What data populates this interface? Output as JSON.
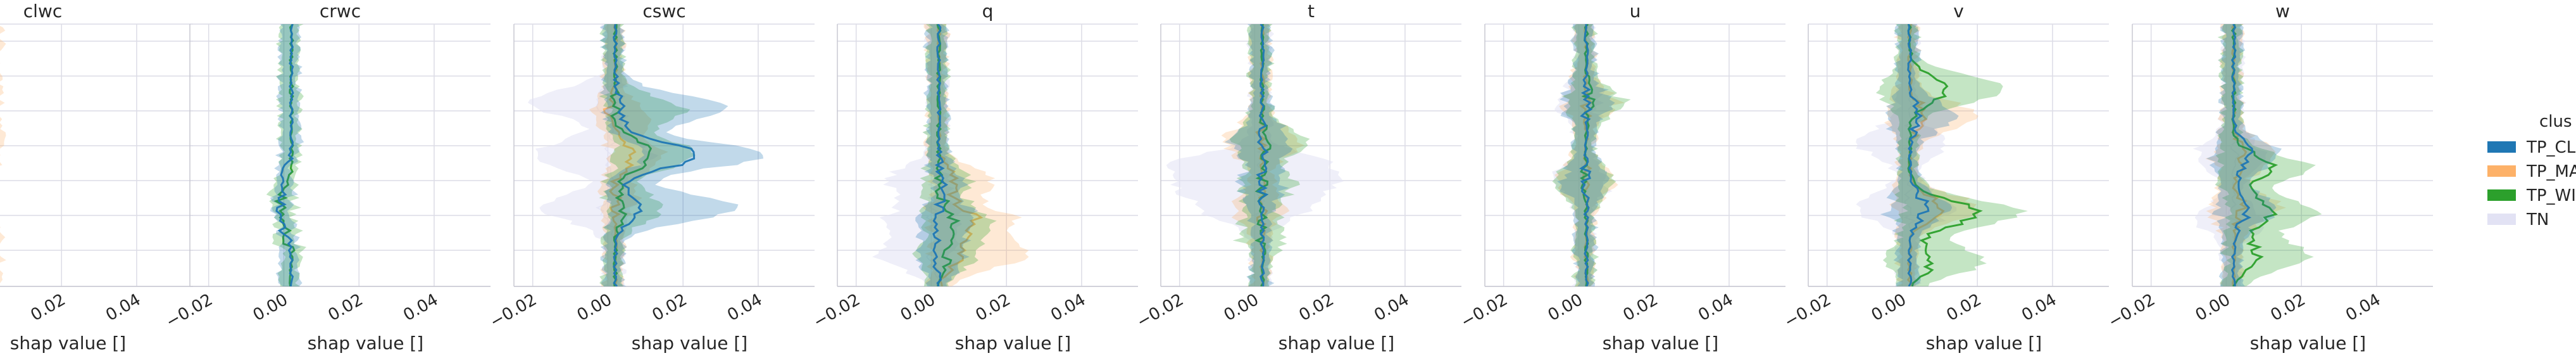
{
  "chart_data": {
    "type": "area",
    "description_free": true,
    "panels": [
      {
        "title": "clwc",
        "xlabel": "shap value []",
        "xlim": [
          -0.025,
          0.055
        ]
      },
      {
        "title": "crwc",
        "xlabel": "shap value []",
        "xlim": [
          -0.025,
          0.055
        ]
      },
      {
        "title": "cswc",
        "xlabel": "shap value []",
        "xlim": [
          -0.025,
          0.055
        ]
      },
      {
        "title": "q",
        "xlabel": "shap value []",
        "xlim": [
          -0.025,
          0.055
        ]
      },
      {
        "title": "t",
        "xlabel": "shap value []",
        "xlim": [
          -0.025,
          0.055
        ]
      },
      {
        "title": "u",
        "xlabel": "shap value []",
        "xlim": [
          -0.025,
          0.055
        ]
      },
      {
        "title": "v",
        "xlabel": "shap value []",
        "xlim": [
          -0.025,
          0.055
        ]
      },
      {
        "title": "w",
        "xlabel": "shap value []",
        "xlim": [
          -0.025,
          0.055
        ]
      }
    ],
    "xticks": [
      -0.02,
      0.0,
      0.02,
      0.04
    ],
    "xtick_labels": [
      "−0.02",
      "0.00",
      "0.02",
      "0.04"
    ],
    "grid": true,
    "legend": {
      "placement": "right",
      "title": "clus",
      "entries": [
        {
          "label": "TP_CL",
          "color": "#1f77b4"
        },
        {
          "label": "TP_MA",
          "color": "#fdb168"
        },
        {
          "label": "TP_WI",
          "color": "#2ca02c"
        },
        {
          "label": "TN",
          "color": "#e2e2f4"
        }
      ]
    },
    "series_profiles": {
      "clwc": {
        "TP_MA": [
          [
            0.62,
            -0.02,
            0.001,
            -0.03
          ],
          [
            0.66,
            -0.022,
            0.0,
            -0.03
          ]
        ]
      },
      "crwc": {
        "TP_CL": [
          [
            0.6,
            0.0,
            0.002,
            -0.001
          ],
          [
            0.7,
            -0.002,
            0.001,
            -0.004
          ],
          [
            0.75,
            0.0,
            0.003,
            0.0
          ]
        ],
        "TP_WI": [
          [
            0.7,
            -0.002,
            0.002,
            -0.005
          ],
          [
            0.76,
            0.002,
            0.004,
            0.0
          ],
          [
            0.8,
            0.001,
            0.005,
            -0.001
          ]
        ]
      },
      "cswc": {
        "TN": [
          [
            0.3,
            -0.002,
            0.004,
            -0.02
          ],
          [
            0.5,
            0.0,
            0.012,
            -0.02
          ],
          [
            0.7,
            -0.002,
            0.006,
            -0.018
          ]
        ],
        "TP_MA": [
          [
            0.35,
            0.0,
            0.01,
            -0.004
          ],
          [
            0.5,
            0.006,
            0.014,
            0.0
          ],
          [
            0.65,
            0.002,
            0.008,
            -0.002
          ]
        ],
        "TP_WI": [
          [
            0.33,
            0.002,
            0.02,
            0.0
          ],
          [
            0.5,
            0.012,
            0.024,
            0.002
          ],
          [
            0.7,
            0.004,
            0.015,
            0.0
          ]
        ],
        "TP_CL": [
          [
            0.32,
            0.004,
            0.032,
            0.0
          ],
          [
            0.5,
            0.024,
            0.042,
            0.01
          ],
          [
            0.7,
            0.008,
            0.034,
            0.0
          ]
        ]
      },
      "q": {
        "TN": [
          [
            0.6,
            0.0,
            0.004,
            -0.012
          ],
          [
            0.75,
            0.0,
            0.008,
            -0.012
          ],
          [
            0.88,
            0.0,
            0.006,
            -0.014
          ]
        ],
        "TP_CL": [
          [
            0.6,
            0.003,
            0.008,
            0.0
          ],
          [
            0.75,
            0.002,
            0.012,
            -0.003
          ],
          [
            0.88,
            0.002,
            0.01,
            -0.002
          ]
        ],
        "TP_MA": [
          [
            0.6,
            0.006,
            0.016,
            0.0
          ],
          [
            0.75,
            0.012,
            0.022,
            0.0
          ],
          [
            0.88,
            0.008,
            0.026,
            0.0
          ]
        ],
        "TP_WI": [
          [
            0.6,
            0.002,
            0.01,
            -0.002
          ],
          [
            0.75,
            0.006,
            0.016,
            -0.002
          ],
          [
            0.88,
            0.004,
            0.012,
            -0.004
          ]
        ]
      },
      "t": {
        "TN": [
          [
            0.55,
            0.002,
            0.02,
            -0.022
          ],
          [
            0.62,
            0.002,
            0.024,
            -0.024
          ],
          [
            0.7,
            0.001,
            0.012,
            -0.012
          ]
        ],
        "TP_MA": [
          [
            0.45,
            0.002,
            0.012,
            -0.008
          ],
          [
            0.7,
            0.002,
            0.008,
            -0.006
          ]
        ],
        "TP_WI": [
          [
            0.45,
            0.003,
            0.014,
            -0.006
          ],
          [
            0.62,
            0.002,
            0.01,
            -0.004
          ],
          [
            0.8,
            0.002,
            0.008,
            -0.004
          ]
        ],
        "TP_CL": [
          [
            0.45,
            0.002,
            0.01,
            -0.006
          ],
          [
            0.62,
            0.002,
            0.008,
            -0.004
          ]
        ]
      },
      "u": {
        "TN": [
          [
            0.3,
            0.001,
            0.006,
            -0.006
          ],
          [
            0.6,
            0.001,
            0.008,
            -0.006
          ]
        ],
        "TP_MA": [
          [
            0.3,
            0.002,
            0.01,
            -0.004
          ],
          [
            0.6,
            0.002,
            0.01,
            -0.006
          ]
        ],
        "TP_CL": [
          [
            0.3,
            0.002,
            0.008,
            -0.004
          ],
          [
            0.6,
            0.002,
            0.008,
            -0.004
          ]
        ],
        "TP_WI": [
          [
            0.3,
            0.003,
            0.012,
            -0.004
          ],
          [
            0.6,
            0.002,
            0.01,
            -0.006
          ]
        ]
      },
      "v": {
        "TN": [
          [
            0.45,
            0.002,
            0.012,
            -0.012
          ],
          [
            0.7,
            0.002,
            0.014,
            -0.012
          ]
        ],
        "TP_CL": [
          [
            0.35,
            0.004,
            0.014,
            -0.004
          ],
          [
            0.7,
            0.006,
            0.012,
            -0.004
          ]
        ],
        "TP_MA": [
          [
            0.35,
            0.006,
            0.02,
            -0.004
          ],
          [
            0.7,
            0.01,
            0.02,
            -0.002
          ]
        ],
        "TP_WI": [
          [
            0.25,
            0.012,
            0.028,
            -0.006
          ],
          [
            0.72,
            0.02,
            0.032,
            0.0
          ],
          [
            0.9,
            0.008,
            0.022,
            -0.004
          ]
        ]
      },
      "w": {
        "TN": [
          [
            0.5,
            0.002,
            0.01,
            -0.008
          ],
          [
            0.75,
            0.002,
            0.01,
            -0.008
          ]
        ],
        "TP_CL": [
          [
            0.5,
            0.006,
            0.014,
            -0.004
          ],
          [
            0.7,
            0.006,
            0.014,
            -0.002
          ]
        ],
        "TP_MA": [
          [
            0.5,
            0.004,
            0.012,
            -0.004
          ],
          [
            0.7,
            0.004,
            0.014,
            -0.004
          ]
        ],
        "TP_WI": [
          [
            0.55,
            0.012,
            0.022,
            -0.002
          ],
          [
            0.72,
            0.012,
            0.024,
            0.0
          ],
          [
            0.88,
            0.008,
            0.022,
            0.0
          ]
        ]
      }
    }
  }
}
